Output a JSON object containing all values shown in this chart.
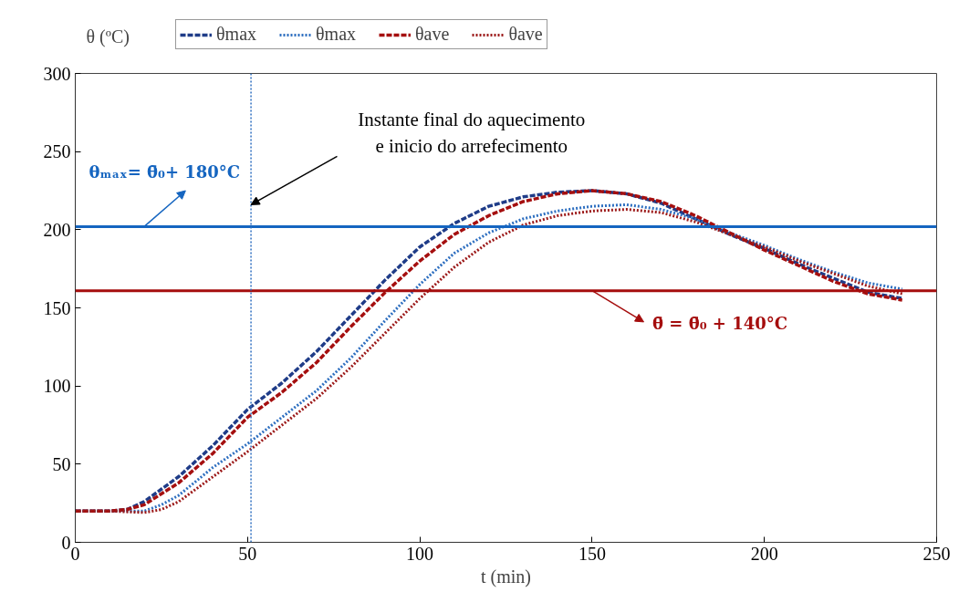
{
  "chart_data": {
    "type": "line",
    "xlabel": "t (min)",
    "ylabel": "θ (ºC)",
    "xlim": [
      0,
      250
    ],
    "ylim": [
      0,
      300
    ],
    "xticks": [
      0,
      50,
      100,
      150,
      200,
      250
    ],
    "yticks": [
      0,
      50,
      100,
      150,
      200,
      250,
      300
    ],
    "grid": false,
    "legend": "top",
    "marker": "none",
    "series": [
      {
        "name": "θmax",
        "color": "#1f3c88",
        "line_style": "dashed",
        "x": [
          0,
          10,
          15,
          20,
          30,
          40,
          50,
          60,
          70,
          80,
          90,
          100,
          110,
          120,
          130,
          140,
          150,
          160,
          170,
          180,
          190,
          200,
          210,
          220,
          230,
          240
        ],
        "values": [
          20,
          20,
          21,
          26,
          42,
          62,
          85,
          102,
          122,
          145,
          168,
          189,
          204,
          215,
          221,
          224,
          225,
          223,
          217,
          207,
          197,
          188,
          178,
          169,
          160,
          156
        ]
      },
      {
        "name": "θmax",
        "color": "#2e6fc0",
        "line_style": "dotted",
        "x": [
          0,
          10,
          20,
          25,
          30,
          40,
          50,
          60,
          70,
          80,
          90,
          100,
          110,
          120,
          130,
          140,
          150,
          160,
          170,
          180,
          190,
          200,
          210,
          220,
          230,
          240
        ],
        "values": [
          20,
          20,
          20,
          24,
          30,
          48,
          63,
          80,
          97,
          118,
          142,
          165,
          185,
          198,
          207,
          212,
          215,
          216,
          213,
          207,
          198,
          190,
          181,
          173,
          166,
          162
        ]
      },
      {
        "name": "θave",
        "color": "#a50f0f",
        "line_style": "dashed",
        "x": [
          0,
          10,
          15,
          20,
          30,
          40,
          50,
          60,
          70,
          80,
          90,
          100,
          110,
          120,
          130,
          140,
          150,
          160,
          170,
          180,
          190,
          200,
          210,
          220,
          230,
          240
        ],
        "values": [
          20,
          20,
          21,
          24,
          38,
          57,
          80,
          96,
          115,
          138,
          160,
          180,
          197,
          209,
          218,
          223,
          225,
          223,
          218,
          209,
          198,
          187,
          177,
          167,
          159,
          155
        ]
      },
      {
        "name": "θave",
        "color": "#9c1a1a",
        "line_style": "dotted",
        "x": [
          0,
          10,
          20,
          25,
          30,
          40,
          50,
          60,
          70,
          80,
          90,
          100,
          110,
          120,
          130,
          140,
          150,
          160,
          170,
          180,
          190,
          200,
          210,
          220,
          230,
          240
        ],
        "values": [
          20,
          20,
          19,
          21,
          26,
          42,
          58,
          75,
          92,
          112,
          134,
          156,
          176,
          192,
          203,
          209,
          212,
          213,
          211,
          205,
          197,
          189,
          180,
          172,
          164,
          159
        ]
      }
    ],
    "ref_lines": [
      {
        "axis": "y",
        "value": 202,
        "label": "θₘₐₓ= θ̄₀+ 180°C",
        "color": "#1565c0",
        "line_style": "solid"
      },
      {
        "axis": "y",
        "value": 161,
        "label": "θ̄ = θ̄₀ + 140°C",
        "color": "#a50d0d",
        "line_style": "solid"
      },
      {
        "axis": "x",
        "value": 51,
        "label": "Instante final do aquecimento\ne inicio do arrefecimento",
        "color": "#2e6fc0",
        "line_style": "dotted"
      }
    ]
  }
}
